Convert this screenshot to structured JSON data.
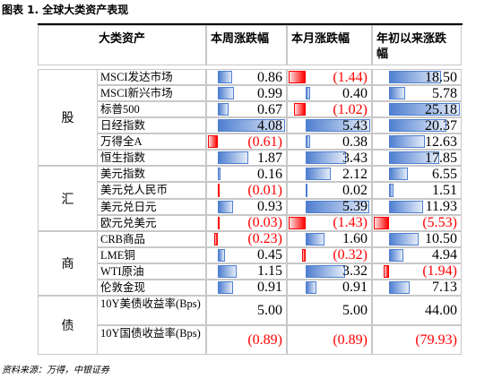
{
  "title": "图表 1. 全球大类资产表现",
  "header": [
    "大类资产",
    "本周涨跌幅",
    "本月涨跌幅",
    "年初以来涨跌幅"
  ],
  "positive_color": "#4f7fd0",
  "negative_color": "#ff0000",
  "groups": [
    {
      "label": "股",
      "bars": true,
      "rows": [
        {
          "name": "MSCI发达市场",
          "values": [
            0.86,
            -1.44,
            18.5
          ],
          "labels": [
            "0.86",
            "(1.44)",
            "18.50"
          ]
        },
        {
          "name": "MSCI新兴市场",
          "values": [
            0.99,
            0.4,
            5.78
          ],
          "labels": [
            "0.99",
            "0.40",
            "5.78"
          ]
        },
        {
          "name": "标普500",
          "values": [
            0.67,
            -1.02,
            25.18
          ],
          "labels": [
            "0.67",
            "(1.02)",
            "25.18"
          ]
        },
        {
          "name": "日经指数",
          "values": [
            4.08,
            5.43,
            20.37
          ],
          "labels": [
            "4.08",
            "5.43",
            "20.37"
          ]
        },
        {
          "name": "万得全A",
          "values": [
            -0.61,
            0.38,
            12.63
          ],
          "labels": [
            "(0.61)",
            "0.38",
            "12.63"
          ]
        },
        {
          "name": "恒生指数",
          "values": [
            1.87,
            3.43,
            17.85
          ],
          "labels": [
            "1.87",
            "3.43",
            "17.85"
          ]
        }
      ]
    },
    {
      "label": "汇",
      "bars": true,
      "rows": [
        {
          "name": "美元指数",
          "values": [
            0.16,
            2.12,
            6.55
          ],
          "labels": [
            "0.16",
            "2.12",
            "6.55"
          ]
        },
        {
          "name": "美元兑人民币",
          "values": [
            -0.01,
            0.02,
            1.51
          ],
          "labels": [
            "(0.01)",
            "0.02",
            "1.51"
          ]
        },
        {
          "name": "美元兑日元",
          "values": [
            0.93,
            5.39,
            11.93
          ],
          "labels": [
            "0.93",
            "5.39",
            "11.93"
          ]
        },
        {
          "name": "欧元兑美元",
          "values": [
            -0.03,
            -1.43,
            -5.53
          ],
          "labels": [
            "(0.03)",
            "(1.43)",
            "(5.53)"
          ]
        }
      ]
    },
    {
      "label": "商",
      "bars": true,
      "rows": [
        {
          "name": "CRB商品",
          "values": [
            -0.23,
            1.6,
            10.5
          ],
          "labels": [
            "(0.23)",
            "1.60",
            "10.50"
          ]
        },
        {
          "name": "LME铜",
          "values": [
            0.45,
            -0.32,
            4.94
          ],
          "labels": [
            "0.45",
            "(0.32)",
            "4.94"
          ]
        },
        {
          "name": "WTI原油",
          "values": [
            1.15,
            3.32,
            -1.94
          ],
          "labels": [
            "1.15",
            "3.32",
            "(1.94)"
          ]
        },
        {
          "name": "伦敦金现",
          "values": [
            0.91,
            0.91,
            7.13
          ],
          "labels": [
            "0.91",
            "0.91",
            "7.13"
          ]
        }
      ]
    },
    {
      "label": "债",
      "bars": false,
      "rows": [
        {
          "name": "10Y美债收益率(Bps)",
          "values": [
            5,
            5,
            44
          ],
          "labels": [
            "5.00",
            "5.00",
            "44.00"
          ]
        },
        {
          "name": "10Y国债收益率(Bps)",
          "values": [
            -0.89,
            -0.89,
            -79.93
          ],
          "labels": [
            "(0.89)",
            "(0.89)",
            "(79.93)"
          ]
        }
      ]
    }
  ],
  "source": "资料来源：万得，中银证券"
}
